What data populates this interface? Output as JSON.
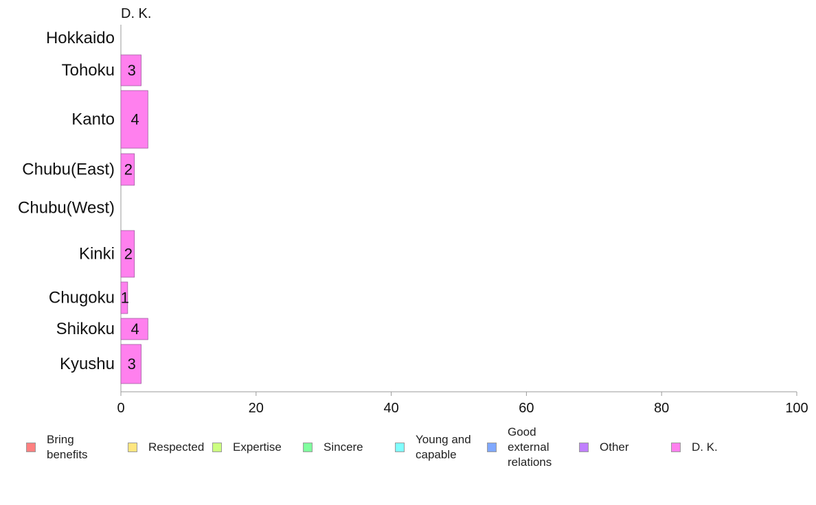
{
  "chart_data": {
    "type": "bar",
    "orientation": "horizontal",
    "facet_title": "D. K.",
    "categories": [
      "Hokkaido",
      "Tohoku",
      "Kanto",
      "Chubu(East)",
      "Chubu(West)",
      "Kinki",
      "Chugoku",
      "Shikoku",
      "Kyushu"
    ],
    "series": [
      {
        "name": "D. K.",
        "values": [
          0,
          3,
          4,
          2,
          0,
          2,
          1,
          4,
          3
        ],
        "color": "#ff80ee"
      }
    ],
    "value_labels": [
      "",
      "3",
      "4",
      "2",
      "",
      "2",
      "1",
      "4",
      "3"
    ],
    "xlim": [
      0,
      100
    ],
    "xticks": [
      "0",
      "20",
      "40",
      "60",
      "80",
      "100"
    ],
    "grid": false,
    "legend_position": "bottom",
    "legend": [
      {
        "label": "Bring benefits",
        "color": "#ff8080"
      },
      {
        "label": "Respected",
        "color": "#ffe680"
      },
      {
        "label": "Expertise",
        "color": "#ccff80"
      },
      {
        "label": "Sincere",
        "color": "#80ff9e"
      },
      {
        "label": "Young and capable",
        "color": "#80ffff"
      },
      {
        "label": "Good external relations",
        "color": "#80a8ff"
      },
      {
        "label": "Other",
        "color": "#c080ff"
      },
      {
        "label": "D. K.",
        "color": "#ff80ee"
      }
    ]
  }
}
